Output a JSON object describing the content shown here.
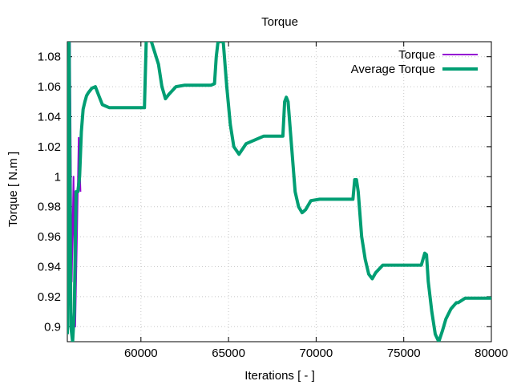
{
  "chart_data": {
    "type": "line",
    "title": "Torque",
    "xlabel": "Iterations [ - ]",
    "ylabel": "Torque [ N.m ]",
    "xlim": [
      55800,
      80000
    ],
    "ylim": [
      0.89,
      1.09
    ],
    "xticks": [
      60000,
      65000,
      70000,
      75000,
      80000
    ],
    "xtick_labels": [
      "60000",
      "65000",
      "70000",
      "75000",
      "80000"
    ],
    "yticks": [
      0.9,
      0.92,
      0.94,
      0.96,
      0.98,
      1.0,
      1.02,
      1.04,
      1.06,
      1.08
    ],
    "ytick_labels": [
      "0.9",
      "0.92",
      "0.94",
      "0.96",
      "0.98",
      "1",
      "1.02",
      "1.04",
      "1.06",
      "1.08"
    ],
    "grid": true,
    "legend_position": "top-right",
    "series": [
      {
        "name": "Torque",
        "color": "#9400d3",
        "x": [
          55800,
          55950,
          56050,
          56150,
          56250,
          56350,
          56450,
          56550
        ],
        "y": [
          0.91,
          1.09,
          0.93,
          1.0,
          0.9,
          0.96,
          1.026,
          0.99
        ]
      },
      {
        "name": "Average Torque",
        "color": "#009e73",
        "x": [
          55800,
          55900,
          56000,
          56100,
          56200,
          56300,
          56400,
          56500,
          56600,
          56700,
          56800,
          56900,
          57000,
          57200,
          57400,
          57600,
          57800,
          58200,
          58600,
          59000,
          60000,
          60200,
          60300,
          60400,
          60600,
          61000,
          61200,
          61400,
          61600,
          62000,
          62500,
          63500,
          64000,
          64200,
          64300,
          64400,
          64500,
          64700,
          64900,
          65100,
          65300,
          65600,
          66000,
          67000,
          67800,
          68100,
          68200,
          68300,
          68400,
          68600,
          68800,
          69000,
          69200,
          69400,
          69700,
          70200,
          71500,
          72100,
          72200,
          72300,
          72400,
          72600,
          72800,
          73000,
          73200,
          73400,
          73800,
          74500,
          76000,
          76200,
          76300,
          76400,
          76600,
          76800,
          77000,
          77200,
          77400,
          77700,
          78000,
          78100,
          78500,
          80000
        ],
        "y": [
          0.895,
          1.09,
          0.9,
          0.89,
          0.91,
          0.99,
          0.99,
          1.0,
          1.03,
          1.045,
          1.05,
          1.054,
          1.056,
          1.059,
          1.06,
          1.054,
          1.048,
          1.046,
          1.046,
          1.046,
          1.046,
          1.046,
          1.09,
          1.1,
          1.09,
          1.075,
          1.06,
          1.052,
          1.055,
          1.06,
          1.061,
          1.061,
          1.061,
          1.062,
          1.08,
          1.09,
          1.09,
          1.09,
          1.06,
          1.035,
          1.02,
          1.015,
          1.022,
          1.027,
          1.027,
          1.027,
          1.05,
          1.053,
          1.05,
          1.02,
          0.99,
          0.98,
          0.976,
          0.978,
          0.984,
          0.985,
          0.985,
          0.985,
          0.998,
          0.998,
          0.99,
          0.96,
          0.945,
          0.935,
          0.932,
          0.936,
          0.941,
          0.941,
          0.941,
          0.949,
          0.948,
          0.93,
          0.91,
          0.895,
          0.89,
          0.897,
          0.905,
          0.912,
          0.916,
          0.916,
          0.919,
          0.919
        ]
      }
    ]
  }
}
